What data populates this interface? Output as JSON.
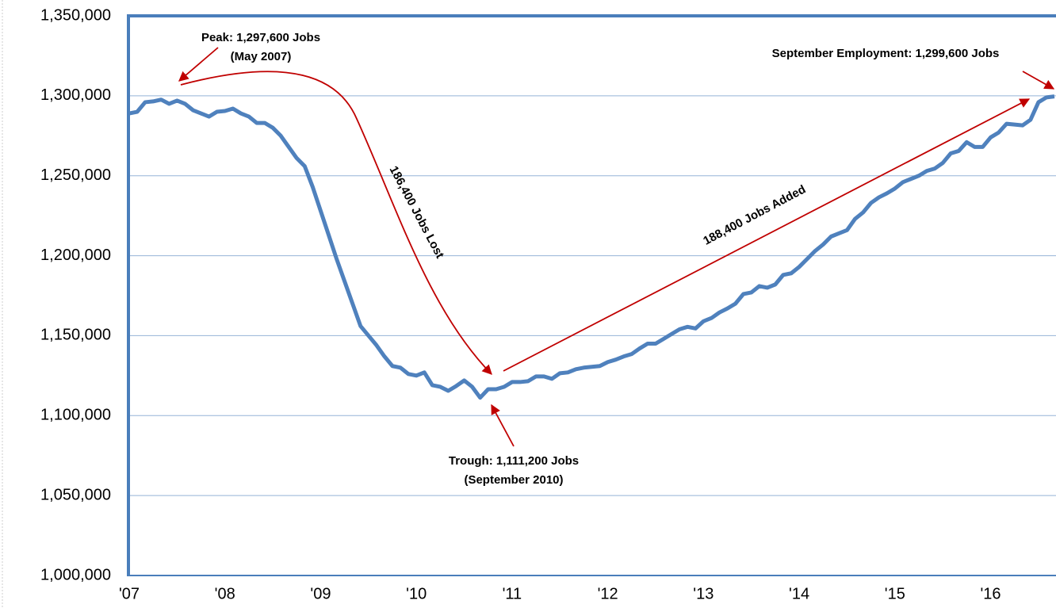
{
  "chart_data": {
    "type": "line",
    "categories": [
      "'07",
      null,
      null,
      null,
      null,
      null,
      null,
      null,
      null,
      null,
      null,
      null,
      "'08",
      null,
      null,
      null,
      null,
      null,
      null,
      null,
      null,
      null,
      null,
      null,
      "'09",
      null,
      null,
      null,
      null,
      null,
      null,
      null,
      null,
      null,
      null,
      null,
      "'10",
      null,
      null,
      null,
      null,
      null,
      null,
      null,
      null,
      null,
      null,
      null,
      "'11",
      null,
      null,
      null,
      null,
      null,
      null,
      null,
      null,
      null,
      null,
      null,
      "'12",
      null,
      null,
      null,
      null,
      null,
      null,
      null,
      null,
      null,
      null,
      null,
      "'13",
      null,
      null,
      null,
      null,
      null,
      null,
      null,
      null,
      null,
      null,
      null,
      "'14",
      null,
      null,
      null,
      null,
      null,
      null,
      null,
      null,
      null,
      null,
      null,
      "'15",
      null,
      null,
      null,
      null,
      null,
      null,
      null,
      null,
      null,
      null,
      null,
      "'16",
      null,
      null,
      null,
      null,
      null,
      null,
      null,
      null
    ],
    "series": [
      {
        "name": "Employment",
        "color": "#4f81bd",
        "values": [
          1289000,
          1290000,
          1296000,
          1296500,
          1297600,
          1295000,
          1297000,
          1295000,
          1291000,
          1289000,
          1287000,
          1290000,
          1290500,
          1292000,
          1289000,
          1287000,
          1283000,
          1283000,
          1280000,
          1275000,
          1268000,
          1261000,
          1256000,
          1243000,
          1228000,
          1213000,
          1198000,
          1184000,
          1170000,
          1156000,
          1150000,
          1144000,
          1137000,
          1131000,
          1130000,
          1126000,
          1125000,
          1127000,
          1119000,
          1118000,
          1115500,
          1118500,
          1122000,
          1118000,
          1111200,
          1116500,
          1116500,
          1118000,
          1121000,
          1121000,
          1121500,
          1124500,
          1124500,
          1123000,
          1126500,
          1127000,
          1129000,
          1130000,
          1130500,
          1131000,
          1133500,
          1135000,
          1137000,
          1138500,
          1142000,
          1145000,
          1145000,
          1148000,
          1151000,
          1154000,
          1155500,
          1154500,
          1159000,
          1161000,
          1164500,
          1167000,
          1170000,
          1176000,
          1177000,
          1181000,
          1180000,
          1182000,
          1188000,
          1189000,
          1193000,
          1198000,
          1203000,
          1207000,
          1212000,
          1214000,
          1216000,
          1223000,
          1227000,
          1233000,
          1236500,
          1239000,
          1242000,
          1246000,
          1248000,
          1250000,
          1253000,
          1254500,
          1258000,
          1264000,
          1265500,
          1271000,
          1268000,
          1268000,
          1274000,
          1277000,
          1282500,
          1282000,
          1281500,
          1285000,
          1296000,
          1299000,
          1299600
        ]
      }
    ],
    "ylim": [
      1000000,
      1350000
    ],
    "yticks": [
      {
        "value": 1000000,
        "label": "1,000,000"
      },
      {
        "value": 1050000,
        "label": "1,050,000"
      },
      {
        "value": 1100000,
        "label": "1,100,000"
      },
      {
        "value": 1150000,
        "label": "1,150,000"
      },
      {
        "value": 1200000,
        "label": "1,200,000"
      },
      {
        "value": 1250000,
        "label": "1,250,000"
      },
      {
        "value": 1300000,
        "label": "1,300,000"
      },
      {
        "value": 1350000,
        "label": "1,350,000"
      }
    ],
    "grid": true,
    "annotations": [
      "Peak: 1,297,600 Jobs",
      "(May 2007)",
      "Trough: 1,111,200 Jobs",
      "(September 2010)",
      "September Employment: 1,299,600 Jobs",
      "186,400 Jobs Lost",
      "188,400 Jobs Added"
    ]
  }
}
